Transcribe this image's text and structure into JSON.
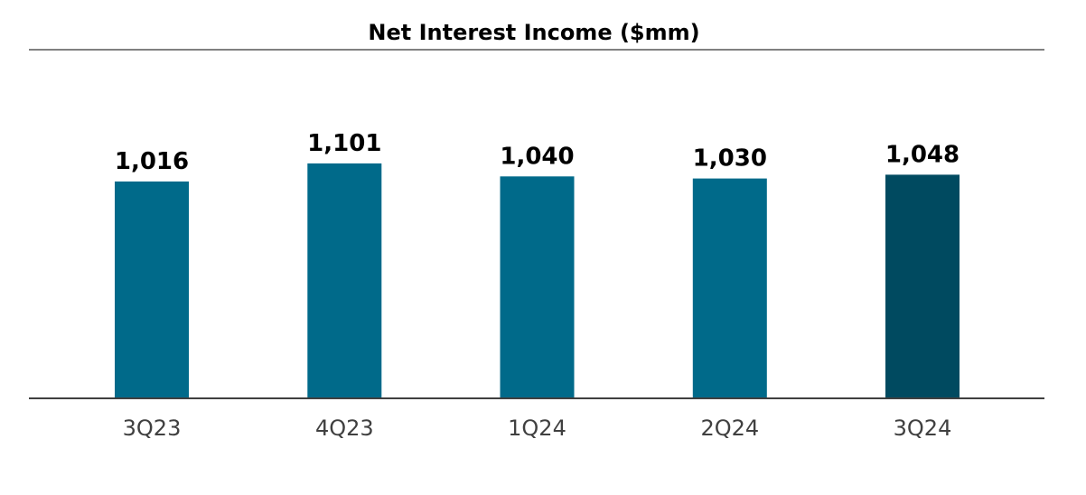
{
  "chart_data": {
    "type": "bar",
    "title": "Net Interest Income ($mm)",
    "categories": [
      "3Q23",
      "4Q23",
      "1Q24",
      "2Q24",
      "3Q24"
    ],
    "series": [
      {
        "values": [
          1016,
          1101,
          1040,
          1030,
          1048
        ],
        "value_labels": [
          "1,016",
          "1,101",
          "1,040",
          "1,030",
          "1,048"
        ]
      }
    ],
    "ylim": [
      0,
      1300
    ],
    "grid": false,
    "legend": "none",
    "colors": {
      "bar": "#006a8a",
      "bar_highlight": "#004a60",
      "axis": "#3f3f3f",
      "rule": "#808080"
    },
    "highlight_index": 4
  }
}
